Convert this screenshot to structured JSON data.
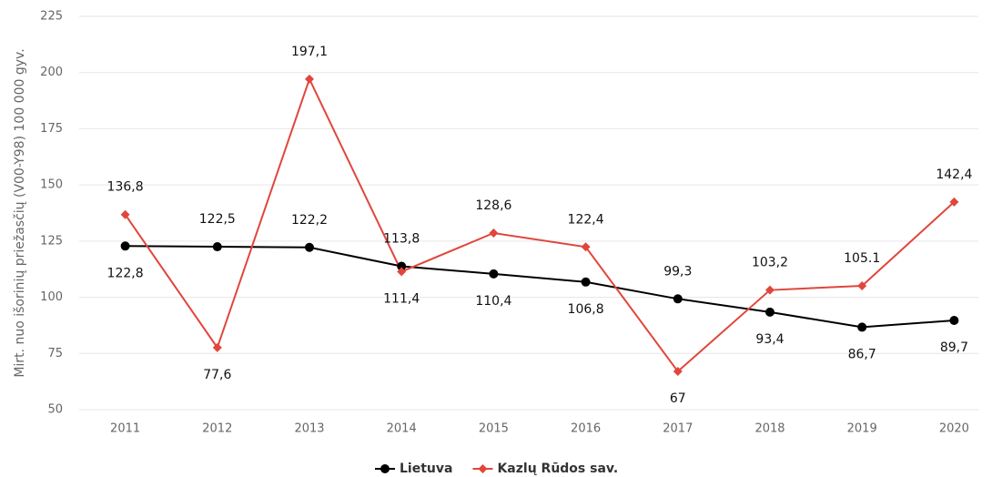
{
  "chart_data": {
    "type": "line",
    "y_axis_label": "Mirt. nuo išorinių priežasčių (V00-Y98) 100 000 gyv.",
    "categories": [
      "2011",
      "2012",
      "2013",
      "2014",
      "2015",
      "2016",
      "2017",
      "2018",
      "2019",
      "2020"
    ],
    "ylim": [
      50,
      225
    ],
    "yticks": [
      50,
      75,
      100,
      125,
      150,
      175,
      200,
      225
    ],
    "grid": true,
    "legend": "bottom",
    "series": [
      {
        "name": "Lietuva",
        "color": "#000000",
        "marker": "circle",
        "values": [
          122.8,
          122.5,
          122.2,
          113.8,
          110.4,
          106.8,
          99.3,
          93.4,
          86.7,
          89.7
        ],
        "value_labels": [
          "122,8",
          "122,5",
          "122,2",
          "113,8",
          "110,4",
          "106,8",
          "99,3",
          "93,4",
          "86,7",
          "89,7"
        ]
      },
      {
        "name": "Kazlų Rūdos sav.",
        "color": "#e0463c",
        "marker": "diamond",
        "values": [
          136.8,
          77.6,
          197.1,
          111.4,
          128.6,
          122.4,
          67,
          103.2,
          105.1,
          142.4
        ],
        "value_labels": [
          "136,8",
          "77,6",
          "197,1",
          "111,4",
          "128,6",
          "122,4",
          "67",
          "103,2",
          "105.1",
          "142,4"
        ]
      }
    ]
  }
}
